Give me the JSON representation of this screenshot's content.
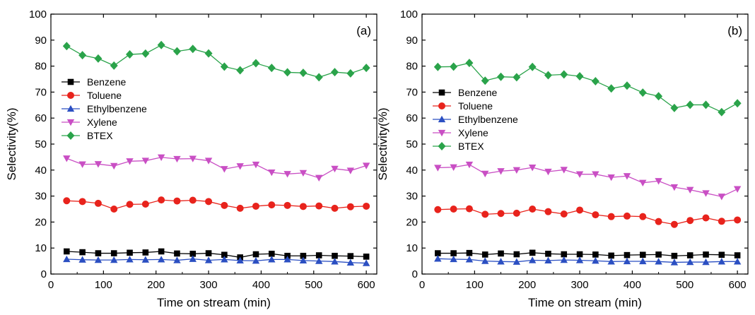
{
  "chart_data": [
    {
      "type": "line",
      "panel_label": "(a)",
      "xlabel": "Time on stream (min)",
      "ylabel": "Selectivity(%)",
      "xlim": [
        0,
        620
      ],
      "ylim": [
        0,
        100
      ],
      "xticks": [
        0,
        100,
        200,
        300,
        400,
        500,
        600
      ],
      "yticks": [
        0,
        10,
        20,
        30,
        40,
        50,
        60,
        70,
        80,
        90,
        100
      ],
      "legend_position": "left",
      "grid": false,
      "x": [
        30,
        60,
        90,
        120,
        150,
        180,
        210,
        240,
        270,
        300,
        330,
        360,
        390,
        420,
        450,
        480,
        510,
        540,
        570,
        600
      ],
      "series": [
        {
          "name": "Benzene",
          "color": "#000000",
          "marker": "square",
          "values": [
            8.7,
            8.4,
            8.0,
            8.0,
            8.2,
            8.3,
            8.7,
            7.9,
            7.8,
            8.0,
            7.4,
            6.4,
            7.6,
            7.8,
            7.0,
            7.0,
            7.2,
            7.0,
            6.9,
            6.7
          ]
        },
        {
          "name": "Toluene",
          "color": "#e8231c",
          "marker": "circle",
          "values": [
            28.2,
            27.9,
            27.2,
            25.0,
            26.8,
            26.9,
            28.5,
            28.1,
            28.4,
            27.9,
            26.4,
            25.3,
            26.1,
            26.6,
            26.4,
            26.0,
            26.2,
            25.3,
            25.9,
            26.1
          ]
        },
        {
          "name": "Ethylbenzene",
          "color": "#2b4fc2",
          "marker": "triangle-up",
          "values": [
            5.7,
            5.5,
            5.4,
            5.4,
            5.6,
            5.5,
            5.6,
            5.3,
            5.8,
            5.3,
            5.6,
            5.2,
            5.1,
            5.6,
            5.6,
            5.2,
            5.0,
            4.8,
            4.4,
            4.2
          ]
        },
        {
          "name": "Xylene",
          "color": "#c94fc4",
          "marker": "triangle-down",
          "values": [
            44.5,
            42.2,
            42.3,
            41.6,
            43.4,
            43.6,
            44.9,
            44.3,
            44.4,
            43.6,
            40.4,
            41.5,
            42.1,
            39.1,
            38.5,
            38.9,
            37.0,
            40.5,
            39.8,
            41.7
          ]
        },
        {
          "name": "BTEX",
          "color": "#2aa34a",
          "marker": "diamond",
          "values": [
            87.7,
            84.2,
            82.9,
            80.2,
            84.5,
            84.8,
            88.1,
            85.7,
            86.6,
            84.9,
            79.8,
            78.4,
            81.1,
            79.3,
            77.6,
            77.4,
            75.7,
            77.7,
            77.2,
            79.3
          ]
        }
      ]
    },
    {
      "type": "line",
      "panel_label": "(b)",
      "xlabel": "Time on stream (min)",
      "ylabel": "Selectivity(%)",
      "xlim": [
        0,
        620
      ],
      "ylim": [
        0,
        100
      ],
      "xticks": [
        0,
        100,
        200,
        300,
        400,
        500,
        600
      ],
      "yticks": [
        0,
        10,
        20,
        30,
        40,
        50,
        60,
        70,
        80,
        90,
        100
      ],
      "legend_position": "left",
      "grid": false,
      "x": [
        30,
        60,
        90,
        120,
        150,
        180,
        210,
        240,
        270,
        300,
        330,
        360,
        390,
        420,
        450,
        480,
        510,
        540,
        570,
        600
      ],
      "series": [
        {
          "name": "Benzene",
          "color": "#000000",
          "marker": "square",
          "values": [
            8.0,
            8.0,
            8.1,
            7.5,
            7.9,
            7.6,
            8.2,
            7.8,
            7.6,
            7.6,
            7.5,
            7.1,
            7.3,
            7.4,
            7.5,
            7.0,
            7.2,
            7.5,
            7.4,
            7.2
          ]
        },
        {
          "name": "Toluene",
          "color": "#e8231c",
          "marker": "circle",
          "values": [
            24.8,
            25.0,
            25.1,
            23.0,
            23.3,
            23.4,
            25.0,
            24.0,
            23.1,
            24.6,
            22.8,
            22.1,
            22.3,
            22.1,
            20.2,
            19.1,
            20.6,
            21.6,
            20.3,
            20.8
          ]
        },
        {
          "name": "Ethylbenzene",
          "color": "#2b4fc2",
          "marker": "triangle-up",
          "values": [
            5.9,
            5.7,
            5.6,
            5.0,
            4.8,
            4.7,
            5.3,
            5.2,
            5.4,
            5.3,
            5.1,
            4.8,
            4.9,
            4.9,
            4.8,
            4.5,
            4.6,
            4.6,
            4.8,
            4.8
          ]
        },
        {
          "name": "Xylene",
          "color": "#c94fc4",
          "marker": "triangle-down",
          "values": [
            40.9,
            41.1,
            42.1,
            38.6,
            39.6,
            40.0,
            41.0,
            39.4,
            40.1,
            38.4,
            38.4,
            37.2,
            37.7,
            35.1,
            35.8,
            33.4,
            32.4,
            31.1,
            29.8,
            32.7
          ]
        },
        {
          "name": "BTEX",
          "color": "#2aa34a",
          "marker": "diamond",
          "values": [
            79.7,
            79.8,
            81.2,
            74.4,
            75.9,
            75.7,
            79.7,
            76.5,
            76.8,
            76.1,
            74.2,
            71.4,
            72.5,
            69.8,
            68.4,
            63.9,
            65.1,
            65.1,
            62.3,
            65.7
          ]
        }
      ]
    }
  ]
}
